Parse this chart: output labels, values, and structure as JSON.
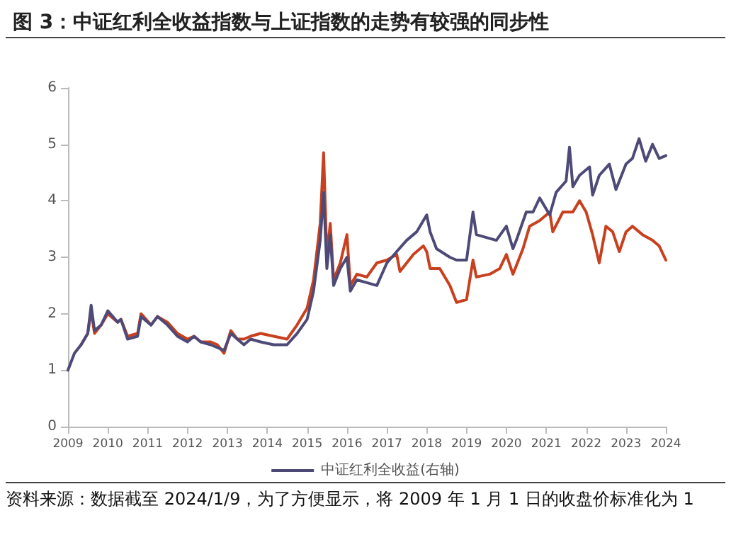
{
  "chart_data": {
    "type": "line",
    "title": "图 3：中证红利全收益指数与上证指数的走势有较强的同步性",
    "annotations": [
      "资料来源：数据截至 2024/1/9，为了方便显示，将 2009 年 1 月 1 日的收盘价标准化为 1"
    ],
    "xlim": [
      "2009",
      "2024"
    ],
    "xticks": [
      "2009",
      "2010",
      "2011",
      "2012",
      "2013",
      "2014",
      "2015",
      "2016",
      "2017",
      "2018",
      "2019",
      "2020",
      "2021",
      "2022",
      "2023",
      "2024"
    ],
    "ylim": [
      0,
      6
    ],
    "yticks": [
      0,
      1,
      2,
      3,
      4,
      5,
      6
    ],
    "grid": false,
    "legend": "bottom",
    "marker": "none",
    "line_style": "solid",
    "series": [
      {
        "color": "#c8401e",
        "x": [
          "2009-05",
          "2009-07",
          "2009-08",
          "2009-09",
          "2009-11",
          "2010-01",
          "2010-04",
          "2010-05",
          "2010-07",
          "2010-10",
          "2010-11",
          "2011-02",
          "2011-04",
          "2011-07",
          "2011-10",
          "2012-01",
          "2012-03",
          "2012-05",
          "2012-08",
          "2012-10",
          "2012-12",
          "2013-02",
          "2013-04",
          "2013-06",
          "2013-08",
          "2013-11",
          "2014-03",
          "2014-07",
          "2014-10",
          "2015-01",
          "2015-03",
          "2015-05",
          "2015-06",
          "2015-07",
          "2015-08",
          "2015-09",
          "2015-11",
          "2016-01",
          "2016-02",
          "2016-04",
          "2016-07",
          "2016-10",
          "2017-01",
          "2017-04",
          "2017-05",
          "2017-09",
          "2017-12",
          "2018-01",
          "2018-02",
          "2018-05",
          "2018-08",
          "2018-10",
          "2019-01",
          "2019-03",
          "2019-04",
          "2019-08",
          "2019-11",
          "2020-01",
          "2020-03",
          "2020-06",
          "2020-08",
          "2020-11",
          "2021-02",
          "2021-03",
          "2021-06",
          "2021-09",
          "2021-11",
          "2022-01",
          "2022-03",
          "2022-05",
          "2022-07",
          "2022-09",
          "2022-11",
          "2023-01",
          "2023-03",
          "2023-06",
          "2023-09",
          "2023-11",
          "2024-01"
        ],
        "values": [
          1.45,
          1.65,
          2.05,
          1.65,
          1.8,
          2.0,
          1.85,
          1.9,
          1.6,
          1.65,
          2.0,
          1.8,
          1.95,
          1.85,
          1.65,
          1.55,
          1.6,
          1.5,
          1.5,
          1.45,
          1.3,
          1.7,
          1.55,
          1.55,
          1.6,
          1.65,
          1.6,
          1.55,
          1.8,
          2.1,
          2.6,
          3.6,
          4.85,
          3.0,
          3.6,
          2.6,
          2.9,
          3.4,
          2.5,
          2.7,
          2.65,
          2.9,
          2.95,
          3.05,
          2.75,
          3.05,
          3.2,
          3.1,
          2.8,
          2.8,
          2.5,
          2.2,
          2.25,
          2.95,
          2.65,
          2.7,
          2.8,
          3.05,
          2.7,
          3.15,
          3.55,
          3.65,
          3.8,
          3.45,
          3.8,
          3.8,
          4.0,
          3.8,
          3.4,
          2.9,
          3.55,
          3.45,
          3.1,
          3.45,
          3.55,
          3.4,
          3.3,
          3.2,
          2.95
        ]
      },
      {
        "name": "中证红利全收益(右轴)",
        "color": "#4e4a78",
        "x": [
          "2009-01",
          "2009-03",
          "2009-05",
          "2009-07",
          "2009-08",
          "2009-09",
          "2009-11",
          "2010-01",
          "2010-04",
          "2010-05",
          "2010-07",
          "2010-10",
          "2010-11",
          "2011-02",
          "2011-04",
          "2011-07",
          "2011-10",
          "2012-01",
          "2012-03",
          "2012-05",
          "2012-08",
          "2012-10",
          "2012-12",
          "2013-02",
          "2013-04",
          "2013-06",
          "2013-08",
          "2013-11",
          "2014-03",
          "2014-07",
          "2014-10",
          "2015-01",
          "2015-03",
          "2015-05",
          "2015-06",
          "2015-07",
          "2015-08",
          "2015-09",
          "2015-11",
          "2016-01",
          "2016-02",
          "2016-04",
          "2016-07",
          "2016-10",
          "2017-01",
          "2017-04",
          "2017-07",
          "2017-10",
          "2018-01",
          "2018-02",
          "2018-04",
          "2018-08",
          "2018-10",
          "2019-01",
          "2019-03",
          "2019-04",
          "2019-07",
          "2019-10",
          "2020-01",
          "2020-03",
          "2020-04",
          "2020-07",
          "2020-09",
          "2020-11",
          "2021-02",
          "2021-04",
          "2021-07",
          "2021-08",
          "2021-09",
          "2021-11",
          "2022-02",
          "2022-03",
          "2022-05",
          "2022-08",
          "2022-10",
          "2023-01",
          "2023-03",
          "2023-05",
          "2023-07",
          "2023-09",
          "2023-11",
          "2024-01"
        ],
        "values": [
          1.0,
          1.3,
          1.45,
          1.65,
          2.15,
          1.7,
          1.8,
          2.05,
          1.85,
          1.9,
          1.55,
          1.6,
          1.95,
          1.8,
          1.95,
          1.8,
          1.6,
          1.5,
          1.6,
          1.5,
          1.45,
          1.4,
          1.35,
          1.65,
          1.55,
          1.45,
          1.55,
          1.5,
          1.45,
          1.45,
          1.65,
          1.9,
          2.4,
          3.3,
          4.15,
          2.8,
          3.4,
          2.5,
          2.8,
          3.0,
          2.4,
          2.6,
          2.55,
          2.5,
          2.9,
          3.1,
          3.3,
          3.45,
          3.75,
          3.45,
          3.15,
          3.0,
          2.95,
          2.95,
          3.8,
          3.4,
          3.35,
          3.3,
          3.55,
          3.15,
          3.3,
          3.8,
          3.8,
          4.05,
          3.75,
          4.15,
          4.35,
          4.95,
          4.25,
          4.45,
          4.6,
          4.1,
          4.45,
          4.65,
          4.2,
          4.65,
          4.75,
          5.1,
          4.7,
          5.0,
          4.75,
          4.8
        ]
      }
    ]
  }
}
